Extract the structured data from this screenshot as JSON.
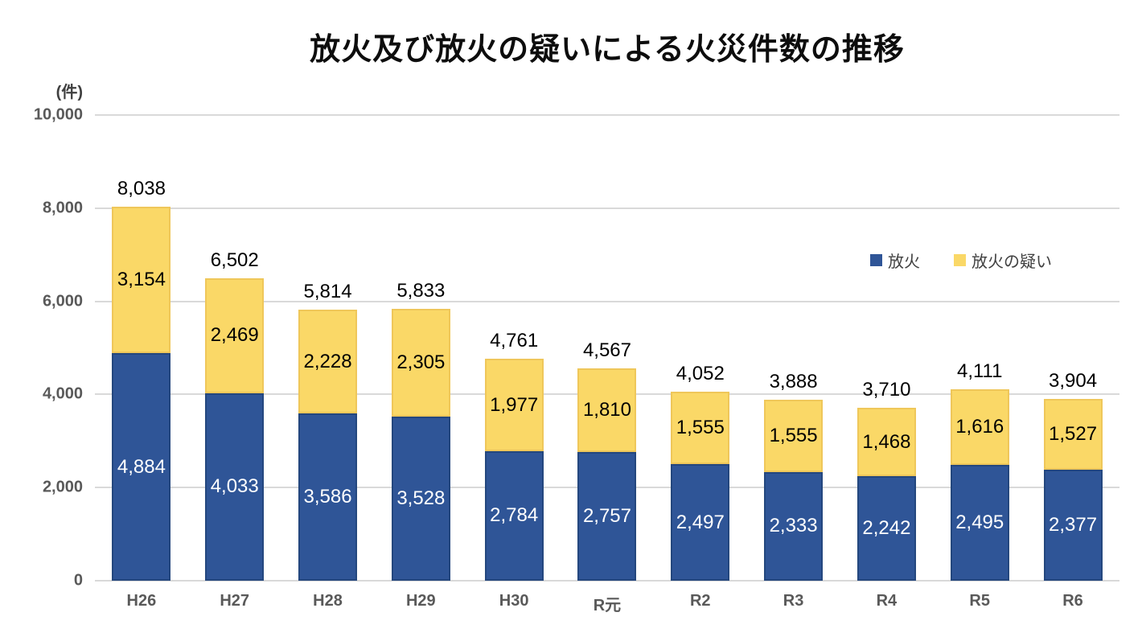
{
  "title": "放火及び放火の疑いによる火災件数の推移",
  "unit_label": "(件)",
  "colors": {
    "arson_blue": "#2F5597",
    "arson_blue_border": "#24477E",
    "suspected_yellow": "#FAD867",
    "suspected_yellow_border": "#EFC75A",
    "gridline": "#D9D9D9",
    "axis_text": "#595959",
    "legend_text": "#404040",
    "total_label": "#000000"
  },
  "chart_data": {
    "type": "bar",
    "stacked": true,
    "title": "放火及び放火の疑いによる火災件数の推移",
    "ylabel": "(件)",
    "xlabel": "",
    "ylim": [
      0,
      10000
    ],
    "ytick_interval": 2000,
    "ytick_labels": [
      "0",
      "2,000",
      "4,000",
      "6,000",
      "8,000",
      "10,000"
    ],
    "grid": true,
    "legend_position": "top-right",
    "categories": [
      "H26",
      "H27",
      "H28",
      "H29",
      "H30",
      "R元",
      "R2",
      "R3",
      "R4",
      "R5",
      "R6"
    ],
    "series": [
      {
        "name": "放火",
        "color": "#2F5597",
        "border_color": "#24477E",
        "label_color": "#FFFFFF",
        "values": [
          4884,
          4033,
          3586,
          3528,
          2784,
          2757,
          2497,
          2333,
          2242,
          2495,
          2377
        ]
      },
      {
        "name": "放火の疑い",
        "color": "#FAD867",
        "border_color": "#EFC75A",
        "label_color": "#000000",
        "values": [
          3154,
          2469,
          2228,
          2305,
          1977,
          1810,
          1555,
          1555,
          1468,
          1616,
          1527
        ]
      }
    ],
    "totals": [
      8038,
      6502,
      5814,
      5833,
      4761,
      4567,
      4052,
      3888,
      3710,
      4111,
      3904
    ]
  }
}
